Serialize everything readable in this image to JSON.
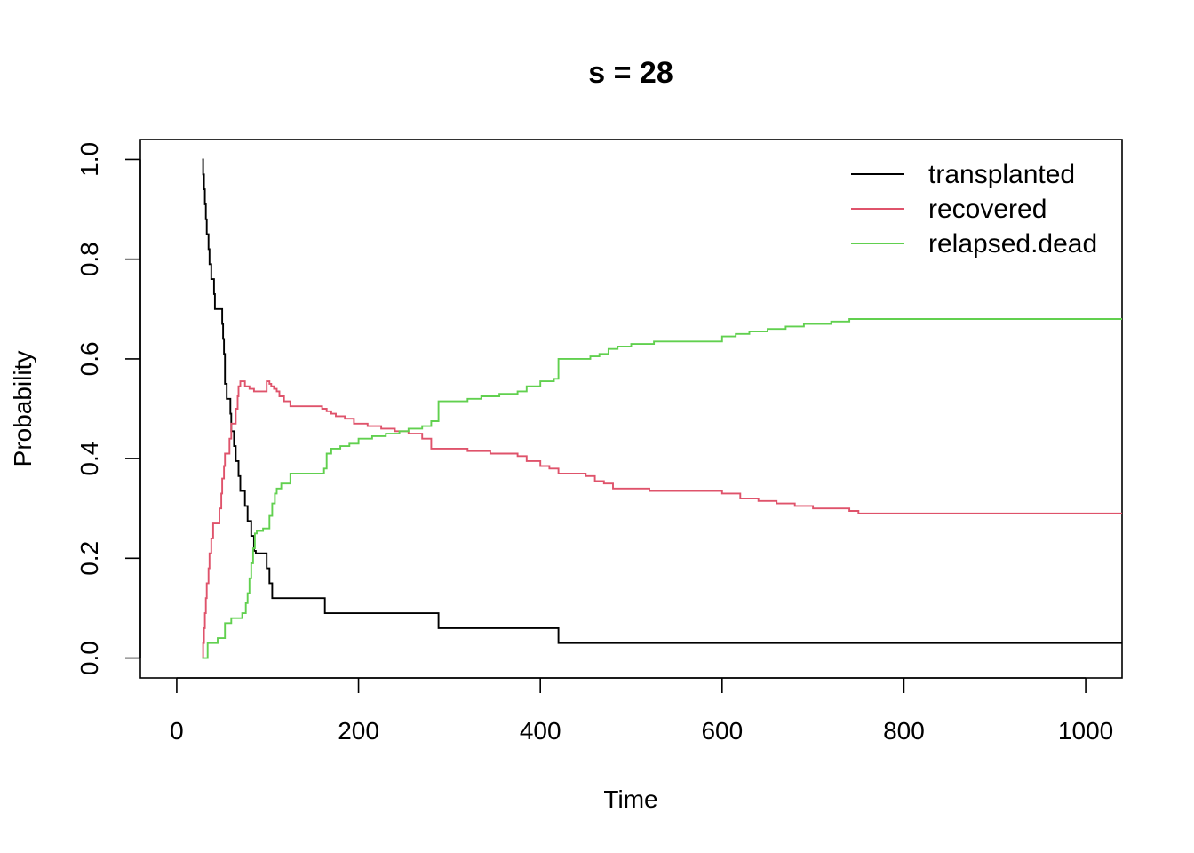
{
  "chart_data": {
    "type": "line",
    "step": true,
    "title": "s = 28",
    "xlabel": "Time",
    "ylabel": "Probability",
    "xlim": [
      -40,
      1040
    ],
    "ylim": [
      -0.04,
      1.04
    ],
    "xticks": [
      0,
      200,
      400,
      600,
      800,
      1000
    ],
    "yticks": [
      0.0,
      0.2,
      0.4,
      0.6,
      0.8,
      1.0
    ],
    "xtick_labels": [
      "0",
      "200",
      "400",
      "600",
      "800",
      "1000"
    ],
    "ytick_labels": [
      "0.0",
      "0.2",
      "0.4",
      "0.6",
      "0.8",
      "1.0"
    ],
    "grid": false,
    "legend_position": "top-right",
    "series": [
      {
        "name": "transplanted",
        "color": "#000000",
        "x": [
          28,
          29,
          30,
          31,
          32,
          33,
          35,
          36,
          38,
          41,
          42,
          50,
          51,
          52,
          53,
          55,
          59,
          60,
          63,
          65,
          68,
          70,
          75,
          78,
          82,
          85,
          87,
          99,
          102,
          105,
          107,
          163,
          288,
          420,
          1040
        ],
        "y": [
          1.0,
          0.97,
          0.94,
          0.91,
          0.88,
          0.85,
          0.82,
          0.79,
          0.76,
          0.73,
          0.7,
          0.67,
          0.64,
          0.61,
          0.55,
          0.52,
          0.49,
          0.455,
          0.425,
          0.395,
          0.365,
          0.335,
          0.305,
          0.275,
          0.245,
          0.215,
          0.21,
          0.18,
          0.15,
          0.12,
          0.12,
          0.09,
          0.06,
          0.03,
          0.03
        ]
      },
      {
        "name": "recovered",
        "color": "#DF536B",
        "x": [
          28,
          29,
          30,
          31,
          32,
          33,
          35,
          36,
          38,
          40,
          43,
          47,
          49,
          50,
          52,
          53,
          55,
          58,
          60,
          62,
          65,
          67,
          68,
          70,
          75,
          80,
          85,
          95,
          99,
          102,
          104,
          107,
          110,
          113,
          118,
          125,
          130,
          160,
          165,
          170,
          175,
          185,
          195,
          210,
          225,
          240,
          255,
          270,
          280,
          320,
          345,
          360,
          375,
          385,
          400,
          410,
          420,
          450,
          460,
          470,
          480,
          520,
          600,
          620,
          640,
          660,
          680,
          700,
          740,
          750,
          1040
        ],
        "y": [
          0.0,
          0.03,
          0.06,
          0.09,
          0.12,
          0.15,
          0.18,
          0.21,
          0.24,
          0.27,
          0.27,
          0.3,
          0.33,
          0.36,
          0.385,
          0.41,
          0.41,
          0.44,
          0.47,
          0.47,
          0.5,
          0.525,
          0.545,
          0.555,
          0.545,
          0.54,
          0.535,
          0.535,
          0.555,
          0.55,
          0.545,
          0.54,
          0.535,
          0.525,
          0.515,
          0.505,
          0.505,
          0.5,
          0.495,
          0.49,
          0.485,
          0.48,
          0.47,
          0.465,
          0.46,
          0.455,
          0.45,
          0.44,
          0.42,
          0.415,
          0.41,
          0.41,
          0.405,
          0.395,
          0.385,
          0.38,
          0.37,
          0.365,
          0.355,
          0.35,
          0.34,
          0.335,
          0.33,
          0.32,
          0.315,
          0.31,
          0.305,
          0.3,
          0.295,
          0.29,
          0.29
        ]
      },
      {
        "name": "relapsed.dead",
        "color": "#61D04F",
        "x": [
          28,
          34,
          45,
          53,
          60,
          72,
          76,
          78,
          80,
          82,
          84,
          86,
          88,
          95,
          100,
          102,
          105,
          108,
          110,
          115,
          125,
          160,
          162,
          165,
          170,
          180,
          190,
          200,
          215,
          230,
          245,
          255,
          270,
          280,
          288,
          320,
          335,
          355,
          375,
          385,
          400,
          415,
          420,
          440,
          455,
          465,
          475,
          485,
          500,
          525,
          580,
          600,
          615,
          630,
          650,
          670,
          690,
          700,
          720,
          740,
          750,
          1040
        ],
        "y": [
          0.0,
          0.03,
          0.04,
          0.07,
          0.08,
          0.09,
          0.11,
          0.13,
          0.16,
          0.19,
          0.22,
          0.25,
          0.255,
          0.26,
          0.26,
          0.285,
          0.31,
          0.33,
          0.34,
          0.35,
          0.37,
          0.37,
          0.38,
          0.41,
          0.42,
          0.425,
          0.43,
          0.44,
          0.445,
          0.45,
          0.455,
          0.46,
          0.465,
          0.475,
          0.515,
          0.52,
          0.525,
          0.53,
          0.535,
          0.545,
          0.555,
          0.56,
          0.6,
          0.6,
          0.605,
          0.61,
          0.62,
          0.625,
          0.63,
          0.635,
          0.635,
          0.645,
          0.65,
          0.655,
          0.66,
          0.665,
          0.67,
          0.67,
          0.675,
          0.68,
          0.68,
          0.68
        ]
      }
    ]
  }
}
